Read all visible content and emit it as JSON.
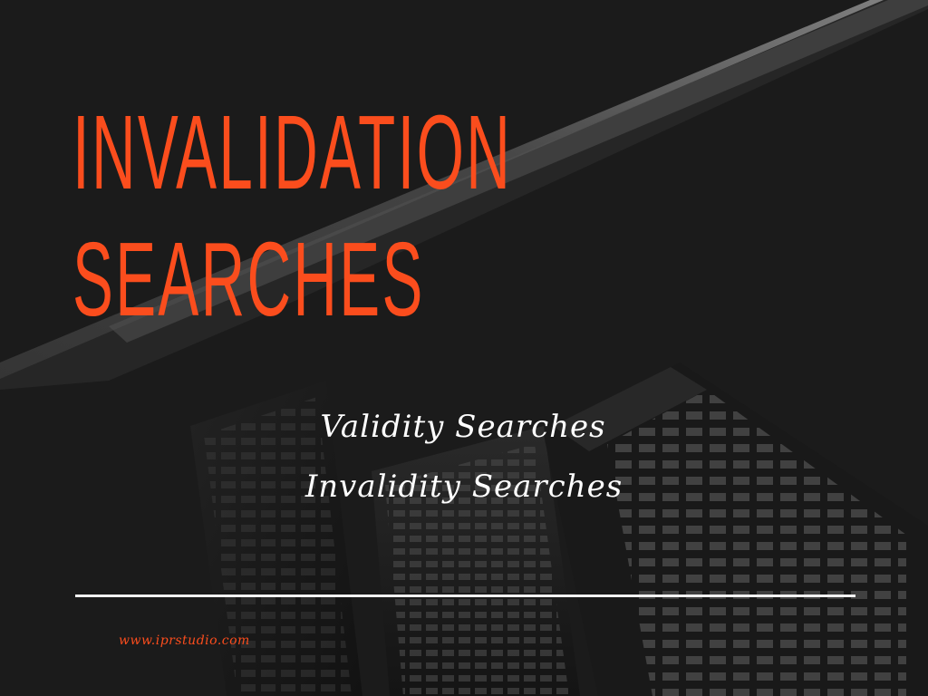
{
  "headline": {
    "line1": "INVALIDATION",
    "line2": "SEARCHES"
  },
  "services": [
    "Validity Searches",
    "Invalidity Searches"
  ],
  "footer": {
    "website": "www.iprstudio.com"
  },
  "colors": {
    "accent": "#fb4d1d",
    "background": "#1e1e1e",
    "text": "#ffffff"
  }
}
